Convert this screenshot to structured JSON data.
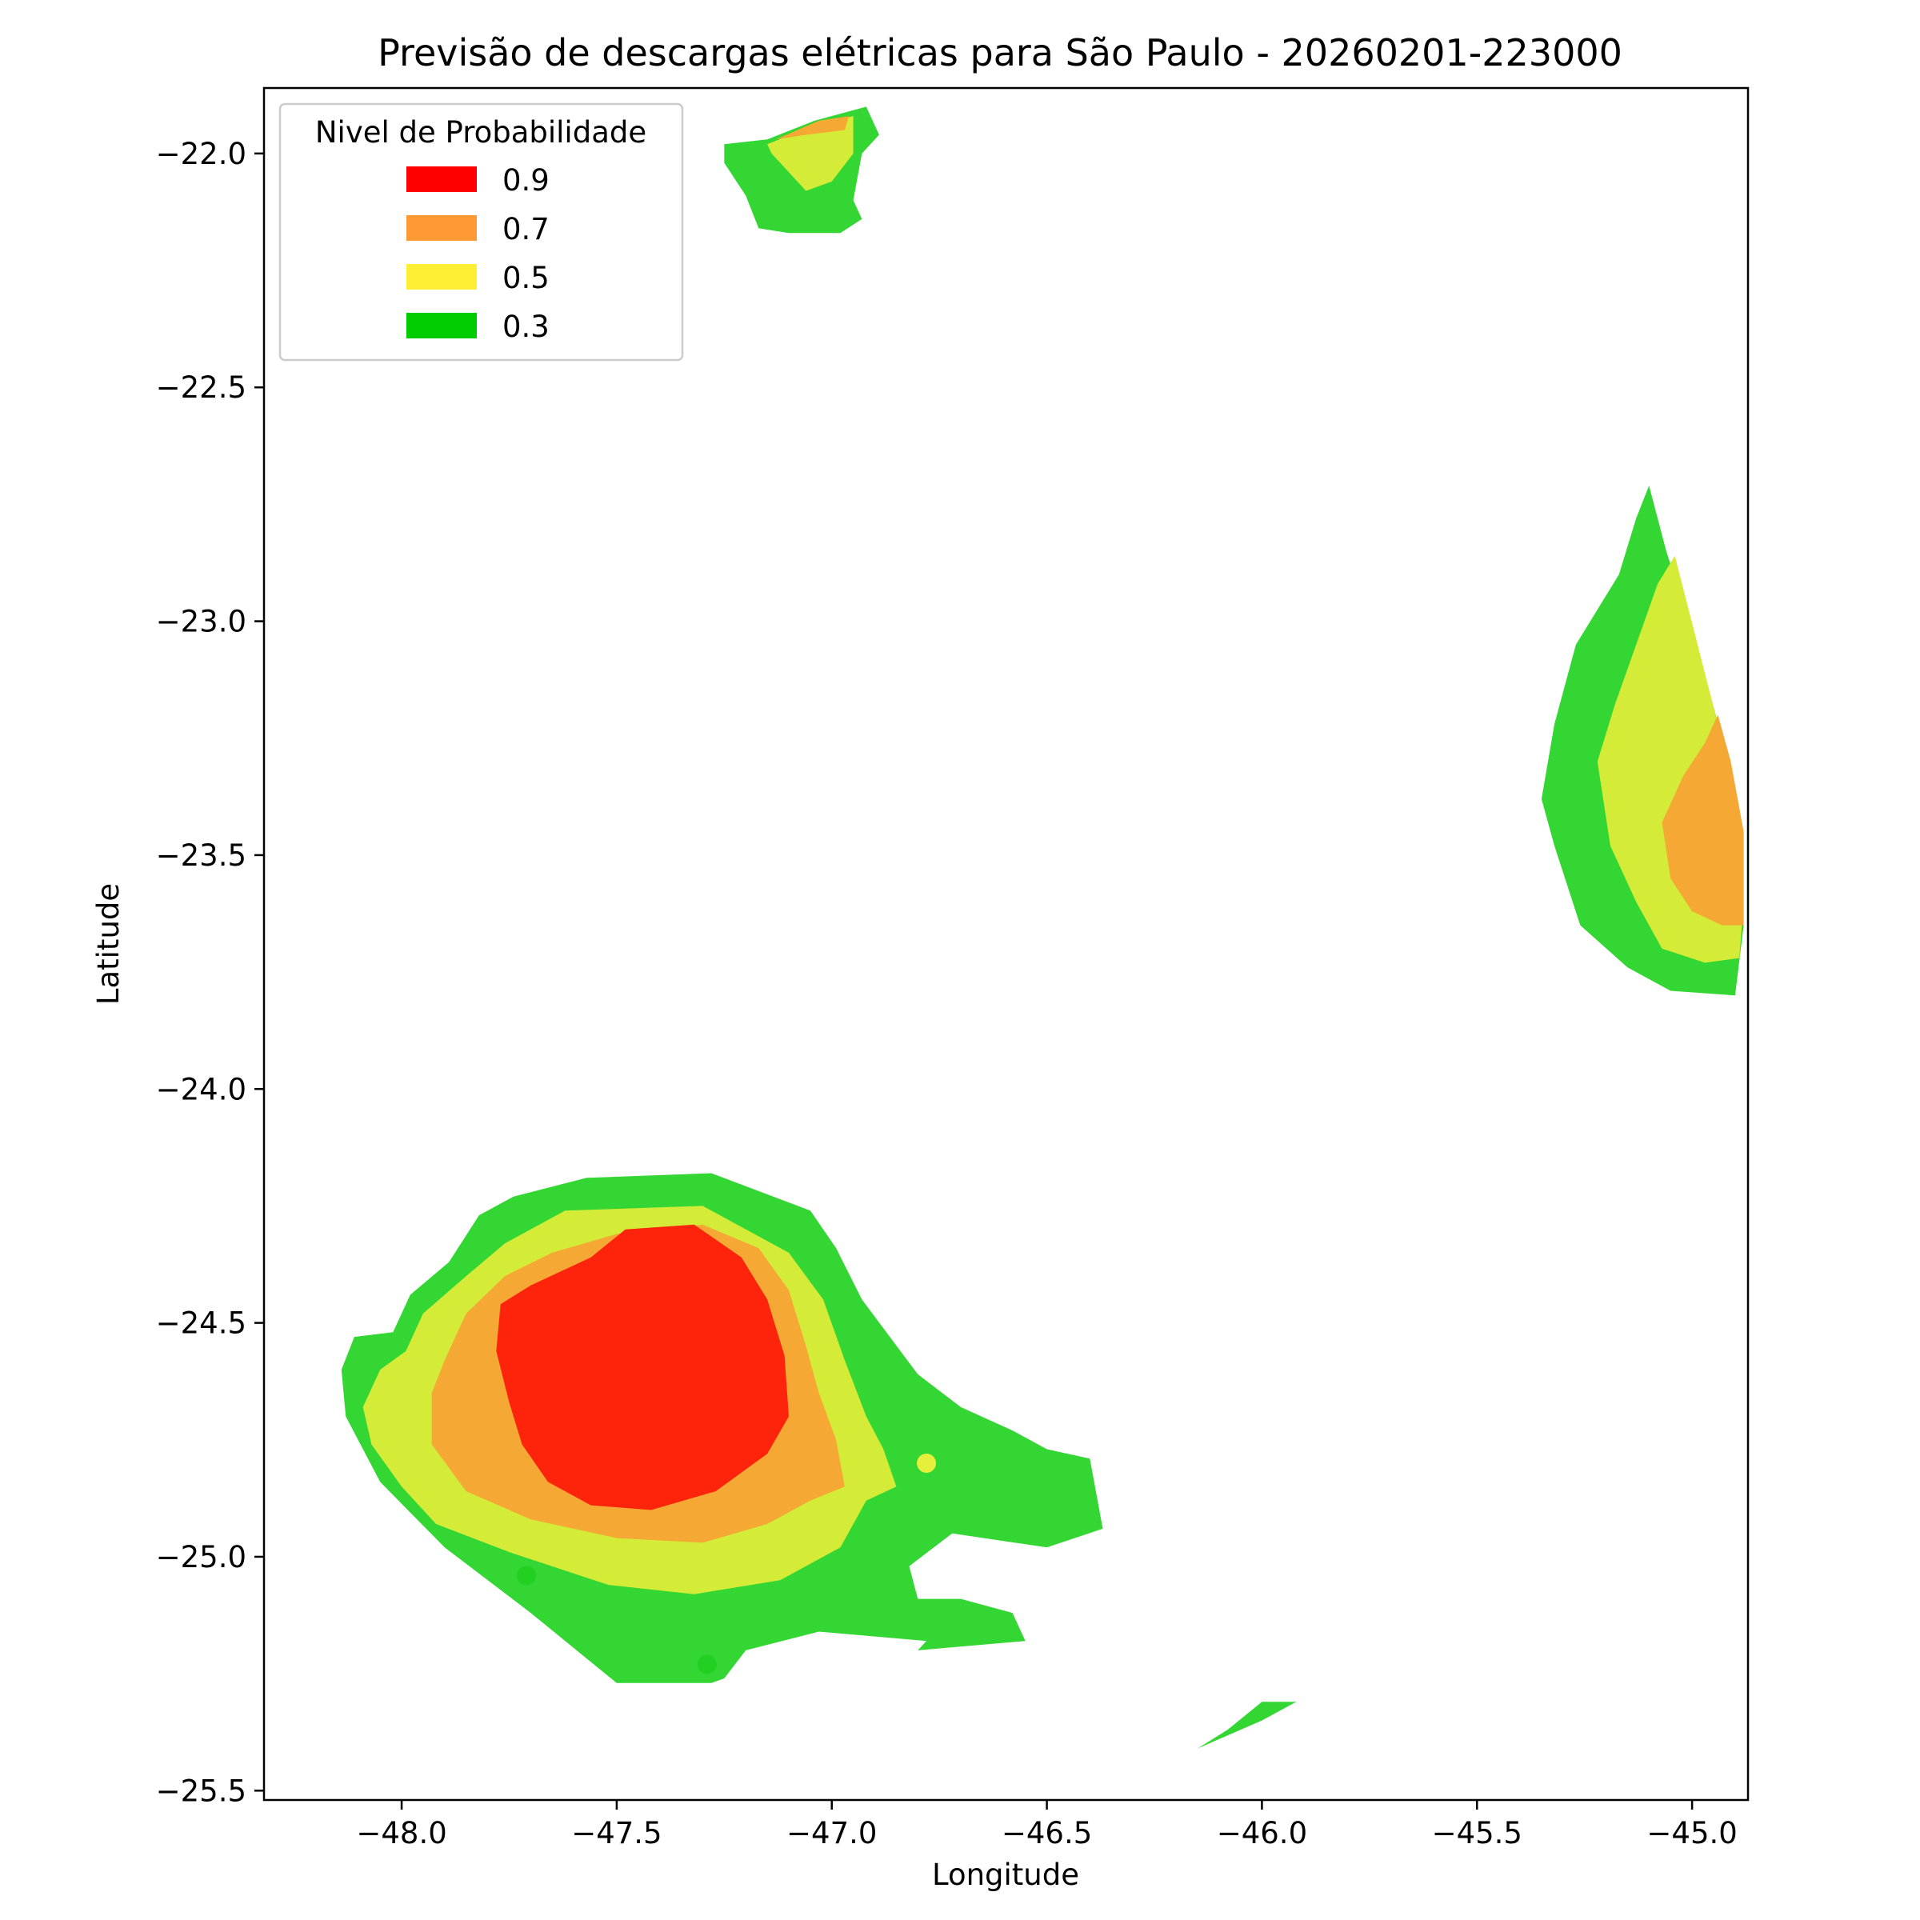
{
  "chart_data": {
    "type": "contour",
    "title": "Previsão de descargas elétricas para São Paulo - 20260201-223000",
    "xlabel": "Longitude",
    "ylabel": "Latitude",
    "xlim": [
      -48.32,
      -44.87
    ],
    "ylim": [
      -25.52,
      -21.86
    ],
    "xticks": [
      -48.0,
      -47.5,
      -47.0,
      -46.5,
      -46.0,
      -45.5,
      -45.0
    ],
    "yticks": [
      -22.0,
      -22.5,
      -23.0,
      -23.5,
      -24.0,
      -24.5,
      -25.0,
      -25.5
    ],
    "xtick_labels": [
      "−48.0",
      "−47.5",
      "−47.0",
      "−46.5",
      "−46.0",
      "−45.5",
      "−45.0"
    ],
    "ytick_labels": [
      "−22.0",
      "−22.5",
      "−23.0",
      "−23.5",
      "−24.0",
      "−24.5",
      "−25.0",
      "−25.5"
    ],
    "grid": false,
    "legend": {
      "title": "Nivel de Probabilidade",
      "placement": "top-left",
      "entries": [
        {
          "label": "0.9",
          "color": "#ff0000"
        },
        {
          "label": "0.7",
          "color": "#ff9933"
        },
        {
          "label": "0.5",
          "color": "#ffee33"
        },
        {
          "label": "0.3",
          "color": "#00cc00"
        }
      ]
    },
    "fill_colors": {
      "0.3": "#33d633",
      "0.5": "#d4ec38",
      "0.7": "#f5a834",
      "0.9": "#fd240b"
    },
    "regions": [
      {
        "name": "cell-southwest",
        "level": "0.3",
        "points": [
          [
            -48.14,
            -24.6
          ],
          [
            -48.11,
            -24.53
          ],
          [
            -48.02,
            -24.52
          ],
          [
            -47.98,
            -24.44
          ],
          [
            -47.89,
            -24.37
          ],
          [
            -47.82,
            -24.27
          ],
          [
            -47.74,
            -24.23
          ],
          [
            -47.57,
            -24.19
          ],
          [
            -47.28,
            -24.18
          ],
          [
            -47.05,
            -24.26
          ],
          [
            -46.99,
            -24.34
          ],
          [
            -46.93,
            -24.45
          ],
          [
            -46.8,
            -24.61
          ],
          [
            -46.7,
            -24.68
          ],
          [
            -46.58,
            -24.73
          ],
          [
            -46.5,
            -24.77
          ],
          [
            -46.4,
            -24.79
          ],
          [
            -46.37,
            -24.94
          ],
          [
            -46.5,
            -24.98
          ],
          [
            -46.72,
            -24.95
          ],
          [
            -46.82,
            -25.02
          ],
          [
            -46.8,
            -25.09
          ],
          [
            -46.7,
            -25.09
          ],
          [
            -46.58,
            -25.12
          ],
          [
            -46.55,
            -25.18
          ],
          [
            -46.8,
            -25.2
          ],
          [
            -46.78,
            -25.18
          ],
          [
            -47.03,
            -25.16
          ],
          [
            -47.2,
            -25.2
          ],
          [
            -47.25,
            -25.26
          ],
          [
            -47.28,
            -25.27
          ],
          [
            -47.5,
            -25.27
          ],
          [
            -47.58,
            -25.21
          ],
          [
            -47.7,
            -25.12
          ],
          [
            -47.9,
            -24.98
          ],
          [
            -48.05,
            -24.84
          ],
          [
            -48.13,
            -24.7
          ]
        ]
      },
      {
        "name": "cell-southwest",
        "level": "0.5",
        "points": [
          [
            -48.09,
            -24.68
          ],
          [
            -48.05,
            -24.6
          ],
          [
            -47.99,
            -24.56
          ],
          [
            -47.95,
            -24.48
          ],
          [
            -47.85,
            -24.4
          ],
          [
            -47.76,
            -24.33
          ],
          [
            -47.62,
            -24.26
          ],
          [
            -47.3,
            -24.25
          ],
          [
            -47.1,
            -24.35
          ],
          [
            -47.02,
            -24.45
          ],
          [
            -46.97,
            -24.58
          ],
          [
            -46.92,
            -24.7
          ],
          [
            -46.88,
            -24.77
          ],
          [
            -46.85,
            -24.85
          ],
          [
            -46.92,
            -24.88
          ],
          [
            -46.98,
            -24.98
          ],
          [
            -47.12,
            -25.05
          ],
          [
            -47.32,
            -25.08
          ],
          [
            -47.52,
            -25.06
          ],
          [
            -47.75,
            -24.99
          ],
          [
            -47.92,
            -24.93
          ],
          [
            -48.0,
            -24.85
          ],
          [
            -48.07,
            -24.76
          ]
        ]
      },
      {
        "name": "cell-southwest",
        "level": "0.7",
        "points": [
          [
            -47.93,
            -24.65
          ],
          [
            -47.9,
            -24.58
          ],
          [
            -47.85,
            -24.48
          ],
          [
            -47.76,
            -24.4
          ],
          [
            -47.65,
            -24.35
          ],
          [
            -47.5,
            -24.31
          ],
          [
            -47.3,
            -24.29
          ],
          [
            -47.17,
            -24.34
          ],
          [
            -47.1,
            -24.43
          ],
          [
            -47.06,
            -24.55
          ],
          [
            -47.03,
            -24.65
          ],
          [
            -46.99,
            -24.75
          ],
          [
            -46.97,
            -24.85
          ],
          [
            -47.05,
            -24.88
          ],
          [
            -47.15,
            -24.93
          ],
          [
            -47.3,
            -24.97
          ],
          [
            -47.5,
            -24.96
          ],
          [
            -47.7,
            -24.92
          ],
          [
            -47.85,
            -24.86
          ],
          [
            -47.93,
            -24.76
          ]
        ]
      },
      {
        "name": "cell-southwest",
        "level": "0.9",
        "points": [
          [
            -47.77,
            -24.46
          ],
          [
            -47.7,
            -24.42
          ],
          [
            -47.56,
            -24.36
          ],
          [
            -47.48,
            -24.3
          ],
          [
            -47.32,
            -24.29
          ],
          [
            -47.21,
            -24.36
          ],
          [
            -47.15,
            -24.45
          ],
          [
            -47.11,
            -24.57
          ],
          [
            -47.1,
            -24.7
          ],
          [
            -47.15,
            -24.78
          ],
          [
            -47.27,
            -24.86
          ],
          [
            -47.42,
            -24.9
          ],
          [
            -47.56,
            -24.89
          ],
          [
            -47.66,
            -24.84
          ],
          [
            -47.72,
            -24.76
          ],
          [
            -47.75,
            -24.67
          ],
          [
            -47.78,
            -24.56
          ]
        ]
      },
      {
        "name": "cell-north",
        "level": "0.3",
        "points": [
          [
            -47.25,
            -21.98
          ],
          [
            -47.15,
            -21.97
          ],
          [
            -47.04,
            -21.93
          ],
          [
            -46.92,
            -21.9
          ],
          [
            -46.89,
            -21.96
          ],
          [
            -46.93,
            -22.0
          ],
          [
            -46.95,
            -22.1
          ],
          [
            -46.93,
            -22.14
          ],
          [
            -46.98,
            -22.17
          ],
          [
            -47.1,
            -22.17
          ],
          [
            -47.17,
            -22.16
          ],
          [
            -47.2,
            -22.09
          ],
          [
            -47.25,
            -22.02
          ]
        ]
      },
      {
        "name": "cell-north",
        "level": "0.5",
        "points": [
          [
            -47.15,
            -21.98
          ],
          [
            -47.04,
            -21.94
          ],
          [
            -46.95,
            -21.92
          ],
          [
            -46.95,
            -22.0
          ],
          [
            -47.0,
            -22.06
          ],
          [
            -47.06,
            -22.08
          ],
          [
            -47.1,
            -22.04
          ],
          [
            -47.14,
            -22.0
          ]
        ]
      },
      {
        "name": "cell-north",
        "level": "0.7",
        "points": [
          [
            -47.13,
            -21.97
          ],
          [
            -47.03,
            -21.93
          ],
          [
            -46.96,
            -21.92
          ],
          [
            -46.97,
            -21.95
          ],
          [
            -47.06,
            -21.96
          ]
        ]
      },
      {
        "name": "cell-east",
        "level": "0.3",
        "points": [
          [
            -45.1,
            -22.71
          ],
          [
            -45.06,
            -22.85
          ],
          [
            -44.99,
            -23.05
          ],
          [
            -44.93,
            -23.25
          ],
          [
            -44.89,
            -23.4
          ],
          [
            -44.88,
            -23.65
          ],
          [
            -44.9,
            -23.8
          ],
          [
            -45.05,
            -23.79
          ],
          [
            -45.15,
            -23.74
          ],
          [
            -45.26,
            -23.65
          ],
          [
            -45.32,
            -23.48
          ],
          [
            -45.35,
            -23.38
          ],
          [
            -45.32,
            -23.22
          ],
          [
            -45.27,
            -23.05
          ],
          [
            -45.17,
            -22.9
          ],
          [
            -45.13,
            -22.78
          ]
        ]
      },
      {
        "name": "cell-east",
        "level": "0.5",
        "points": [
          [
            -45.04,
            -22.86
          ],
          [
            -44.99,
            -23.04
          ],
          [
            -44.94,
            -23.22
          ],
          [
            -44.9,
            -23.4
          ],
          [
            -44.88,
            -23.6
          ],
          [
            -44.89,
            -23.72
          ],
          [
            -44.97,
            -23.73
          ],
          [
            -45.07,
            -23.7
          ],
          [
            -45.13,
            -23.6
          ],
          [
            -45.19,
            -23.48
          ],
          [
            -45.22,
            -23.3
          ],
          [
            -45.18,
            -23.18
          ],
          [
            -45.13,
            -23.05
          ],
          [
            -45.08,
            -22.92
          ]
        ]
      },
      {
        "name": "cell-east",
        "level": "0.7",
        "points": [
          [
            -44.94,
            -23.2
          ],
          [
            -44.91,
            -23.3
          ],
          [
            -44.88,
            -23.45
          ],
          [
            -44.88,
            -23.65
          ],
          [
            -44.93,
            -23.65
          ],
          [
            -45.0,
            -23.62
          ],
          [
            -45.05,
            -23.55
          ],
          [
            -45.07,
            -23.43
          ],
          [
            -45.02,
            -23.33
          ],
          [
            -44.97,
            -23.26
          ]
        ]
      },
      {
        "name": "strip-south",
        "level": "0.3",
        "points": [
          [
            -46.15,
            -25.41
          ],
          [
            -46.0,
            -25.35
          ],
          [
            -45.92,
            -25.31
          ],
          [
            -46.0,
            -25.31
          ],
          [
            -46.08,
            -25.37
          ]
        ]
      }
    ],
    "points": [
      {
        "name": "point-yellow",
        "lon": -46.78,
        "lat": -24.8,
        "level": "0.5"
      },
      {
        "name": "point-green-1",
        "lon": -47.71,
        "lat": -25.04,
        "level": "0.3"
      },
      {
        "name": "point-green-2",
        "lon": -47.29,
        "lat": -25.23,
        "level": "0.3"
      }
    ]
  }
}
